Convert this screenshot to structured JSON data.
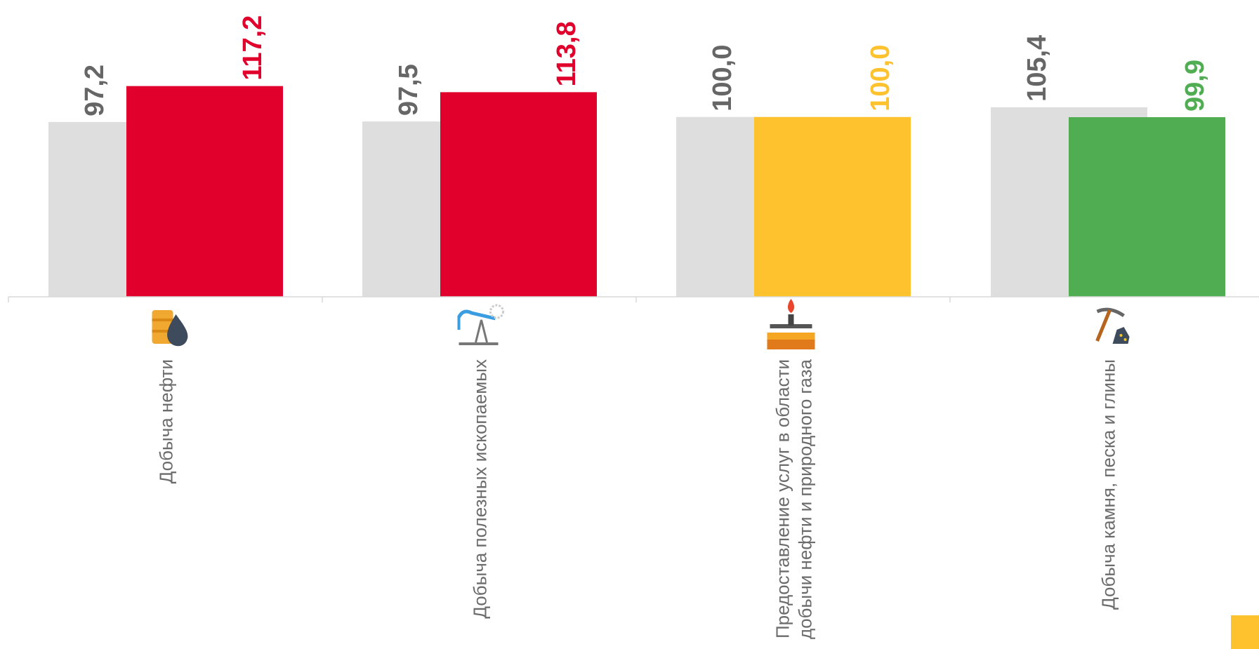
{
  "chart_data": {
    "type": "bar",
    "categories": [
      [
        "Добыча нефти"
      ],
      [
        "Добыча полезных ископаемых"
      ],
      [
        "Предоставление услуг в области",
        "добычи нефти и природного газа"
      ],
      [
        "Добыча камня, песка и глины"
      ]
    ],
    "category_icons": [
      "oil-barrel-drop-icon",
      "pumpjack-icon",
      "gas-flare-rig-icon",
      "pickaxe-rocks-icon"
    ],
    "series": [
      {
        "values": [
          97.2,
          97.5,
          100.0,
          105.4
        ],
        "labels": [
          "97,2",
          "97,5",
          "100,0",
          "105,4"
        ],
        "color": "#dedede",
        "label_color": "#666666"
      },
      {
        "values": [
          117.2,
          113.8,
          100.0,
          99.9
        ],
        "labels": [
          "117,2",
          "113,8",
          "100,0",
          "99,9"
        ],
        "colors": [
          "#e0002b",
          "#e0002b",
          "#fec22f",
          "#50ad52"
        ]
      }
    ],
    "ylim": [
      0,
      120
    ],
    "grid": false,
    "legend": "none",
    "title": "",
    "xlabel": "",
    "ylabel": "",
    "accent_badge_color": "#fec22f"
  }
}
